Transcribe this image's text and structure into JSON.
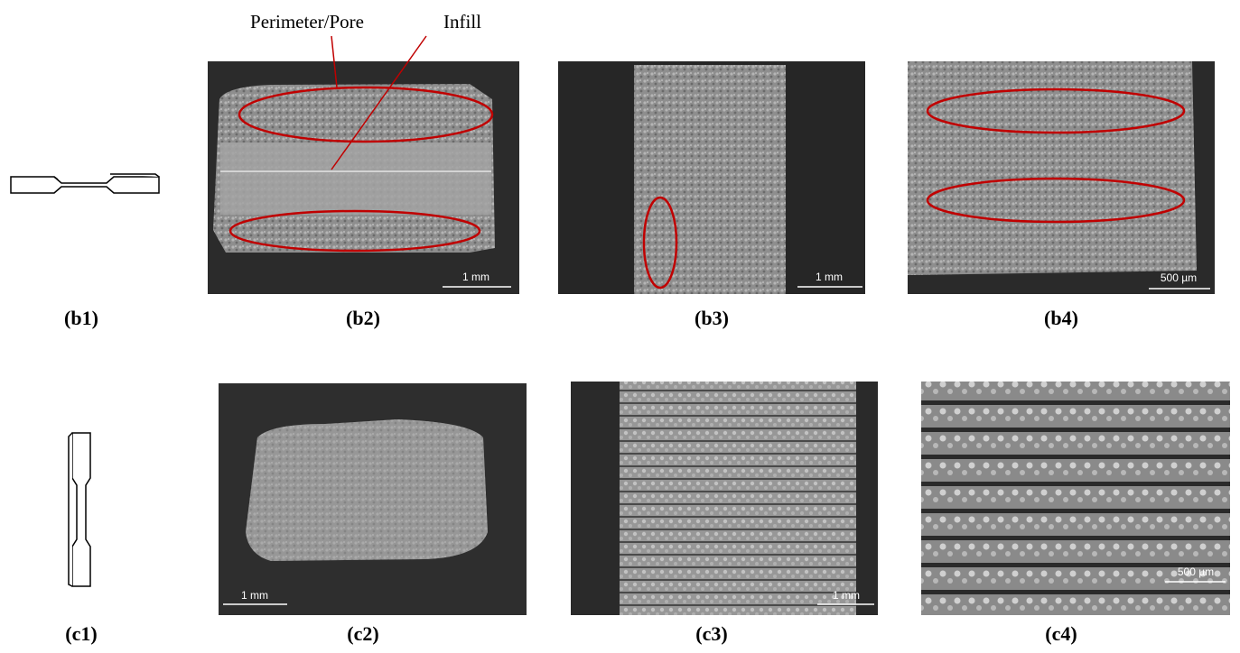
{
  "annotations": {
    "perimeter": "Perimeter/Pore",
    "infill": "Infill"
  },
  "panels": [
    {
      "label": "(b1)"
    },
    {
      "label": "(b2)",
      "scale_bar": "1 mm"
    },
    {
      "label": "(b3)",
      "scale_bar": "1 mm"
    },
    {
      "label": "(b4)",
      "scale_bar": "500 µm"
    },
    {
      "label": "(c1)"
    },
    {
      "label": "(c2)",
      "scale_bar": "1 mm"
    },
    {
      "label": "(c3)",
      "scale_bar": "1 mm"
    },
    {
      "label": "(c4)",
      "scale_bar": "500 µm"
    }
  ]
}
